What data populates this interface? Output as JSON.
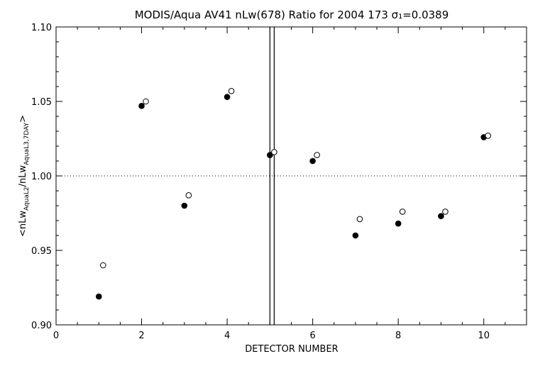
{
  "chart_data": {
    "type": "scatter",
    "title": "MODIS/Aqua AV41 nLw(678) Ratio for 2004 173 σ₁=0.0389",
    "xlabel": "DETECTOR NUMBER",
    "ylabel": "<nLwₐₒᵤₐL2/nLwₐₒᵤₐL3,7DAY>",
    "ylabel_parts": {
      "main1": "<nLw",
      "sub1": "AquaL2",
      "main2": "/nLw",
      "sub2": "AquaL3,7DAY",
      "main3": ">"
    },
    "xlim": [
      0,
      11
    ],
    "ylim": [
      0.9,
      1.1
    ],
    "xticks": [
      0,
      2,
      4,
      6,
      8,
      10
    ],
    "yticks": [
      0.9,
      0.95,
      1.0,
      1.05,
      1.1
    ],
    "xtick_labels": [
      "0",
      "2",
      "4",
      "6",
      "8",
      "10"
    ],
    "ytick_labels": [
      "0.90",
      "0.95",
      "1.00",
      "1.05",
      "1.10"
    ],
    "reference_line": {
      "y": 1.0,
      "style": "dotted"
    },
    "vertical_lines": [
      5.0,
      5.1
    ],
    "series": [
      {
        "marker": "filled-circle",
        "x": [
          1,
          2,
          3,
          4,
          5,
          6,
          7,
          8,
          9,
          10
        ],
        "y": [
          0.919,
          1.047,
          0.98,
          1.053,
          1.014,
          1.01,
          0.96,
          0.968,
          0.973,
          1.026
        ]
      },
      {
        "marker": "open-circle",
        "x": [
          1.1,
          2.1,
          3.1,
          4.1,
          5.1,
          6.1,
          7.1,
          8.1,
          9.1,
          10.1
        ],
        "y": [
          0.94,
          1.05,
          0.987,
          1.057,
          1.016,
          1.014,
          0.971,
          0.976,
          0.976,
          1.027
        ]
      }
    ],
    "grid": false,
    "colors": {
      "axis": "#000000",
      "background": "#ffffff"
    }
  }
}
